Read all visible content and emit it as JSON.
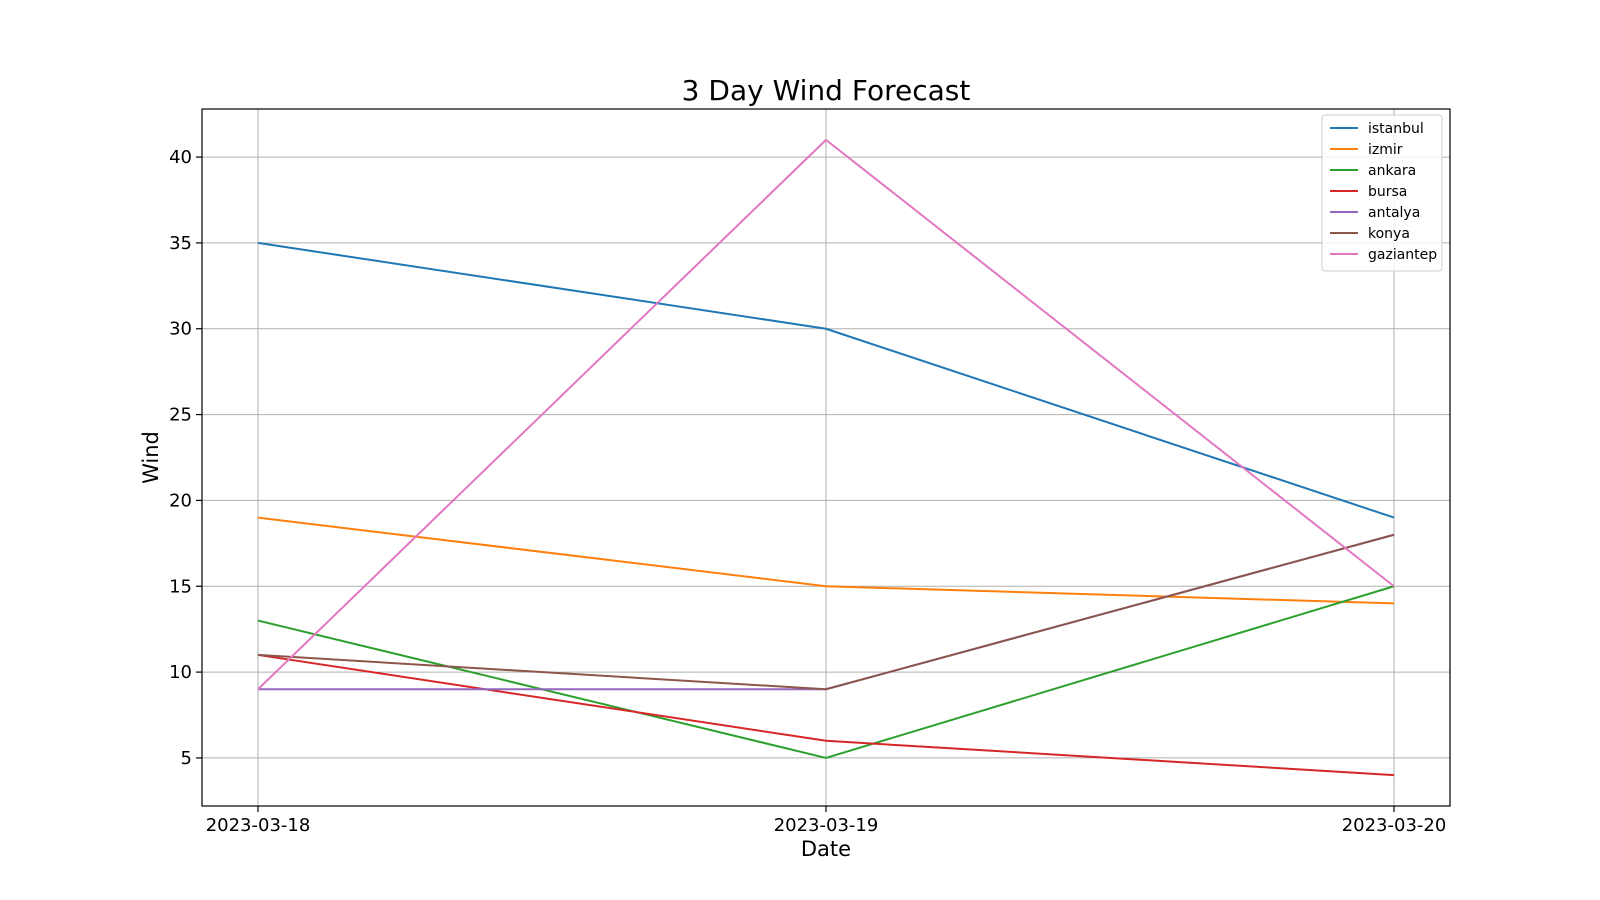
{
  "chart_data": {
    "type": "line",
    "title": "3 Day Wind Forecast",
    "xlabel": "Date",
    "ylabel": "Wind",
    "x": [
      "2023-03-18",
      "2023-03-19",
      "2023-03-20"
    ],
    "ylim": [
      2.2,
      42.8
    ],
    "yticks": [
      5,
      10,
      15,
      20,
      25,
      30,
      35,
      40
    ],
    "grid": true,
    "legend_position": "top-right",
    "series": [
      {
        "name": "istanbul",
        "color": "#1f77b4",
        "values": [
          35,
          30,
          19
        ]
      },
      {
        "name": "izmir",
        "color": "#ff7f0e",
        "values": [
          19,
          15,
          14
        ]
      },
      {
        "name": "ankara",
        "color": "#2ca02c",
        "values": [
          13,
          5,
          15
        ]
      },
      {
        "name": "bursa",
        "color": "#d62728",
        "values": [
          11,
          6,
          4
        ]
      },
      {
        "name": "antalya",
        "color": "#9467bd",
        "values": [
          9,
          9,
          18
        ]
      },
      {
        "name": "konya",
        "color": "#8c564b",
        "values": [
          11,
          9,
          18
        ]
      },
      {
        "name": "gaziantep",
        "color": "#e377c2",
        "values": [
          9,
          41,
          15
        ]
      }
    ]
  }
}
